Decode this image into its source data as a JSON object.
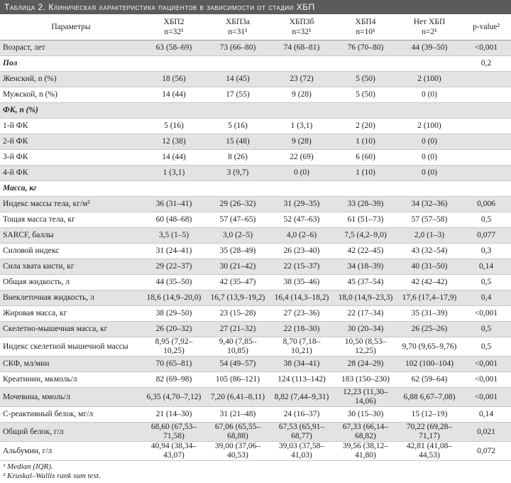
{
  "title": "Таблица 2. Клиническая характеристика пациентов в зависимости от стадии ХБП",
  "table": {
    "header": {
      "parameter": "Параметры",
      "groups": [
        {
          "name": "ХБП2",
          "n": "n=32¹"
        },
        {
          "name": "ХБП3а",
          "n": "n=31¹"
        },
        {
          "name": "ХБП3б",
          "n": "n=32¹"
        },
        {
          "name": "ХБП4",
          "n": "n=10¹"
        },
        {
          "name": "Нет ХБП",
          "n": "n=2¹"
        }
      ],
      "p": "p-value²"
    },
    "rows": [
      {
        "label": "Возраст, лет",
        "values": [
          "63 (58–69)",
          "73 (66–80)",
          "74 (68–81)",
          "76 (70–80)",
          "44 (39–50)"
        ],
        "p": "<0,001"
      },
      {
        "section": "Пол",
        "p": "0,2"
      },
      {
        "label": "Женский, n (%)",
        "values": [
          "18 (56)",
          "14 (45)",
          "23 (72)",
          "5 (50)",
          "2 (100)"
        ]
      },
      {
        "label": "Мужской, n (%)",
        "values": [
          "14 (44)",
          "17 (55)",
          "9 (28)",
          "5 (50)",
          "0 (0)"
        ]
      },
      {
        "section": "ФК, n (%)"
      },
      {
        "label": "1-й ФК",
        "values": [
          "5 (16)",
          "5 (16)",
          "1 (3,1)",
          "2 (20)",
          "2 (100)"
        ]
      },
      {
        "label": "2-й ФК",
        "values": [
          "12 (38)",
          "15 (48)",
          "9 (28)",
          "1 (10)",
          "0 (0)"
        ]
      },
      {
        "label": "3-й ФК",
        "values": [
          "14 (44)",
          "8 (26)",
          "22 (69)",
          "6 (60)",
          "0 (0)"
        ]
      },
      {
        "label": "4-й ФК",
        "values": [
          "1 (3,1)",
          "3 (9,7)",
          "0 (0)",
          "1 (10)",
          "0 (0)"
        ]
      },
      {
        "section": "Масса, кг"
      },
      {
        "label": "Индекс массы тела, кг/м²",
        "values": [
          "36 (31–41)",
          "29 (26–32)",
          "31 (29–35)",
          "33 (28–39)",
          "34 (32–36)"
        ],
        "p": "0,006"
      },
      {
        "label": "Тощая масса тела, кг",
        "values": [
          "60 (48–68)",
          "57 (47–65)",
          "52 (47–63)",
          "61 (51–73)",
          "57 (57–58)"
        ],
        "p": "0,5"
      },
      {
        "label": "SARCF, баллы",
        "values": [
          "3,5 (1–5)",
          "3,0 (2–5)",
          "4,0 (2–6)",
          "7,5 (4,2–9,0)",
          "2,0 (1–3)"
        ],
        "p": "0,077"
      },
      {
        "label": "Силовой индекс",
        "values": [
          "31 (24–41)",
          "35 (28–49)",
          "26 (23–40)",
          "42 (22–45)",
          "43 (32–54)"
        ],
        "p": "0,3"
      },
      {
        "label": "Сила хвата кисти, кг",
        "values": [
          "29 (22–37)",
          "30 (21–42)",
          "22 (15–37)",
          "34 (18–39)",
          "40 (31–50)"
        ],
        "p": "0,14"
      },
      {
        "label": "Общая жидкость, л",
        "values": [
          "44 (35–50)",
          "42 (35–47)",
          "38 (35–46)",
          "45 (37–54)",
          "42 (42–42)"
        ],
        "p": "0,5"
      },
      {
        "label": "Внеклеточная жидкость, л",
        "values": [
          "18,6 (14,9–20,0)",
          "16,7 (13,9–19,2)",
          "16,4 (14,3–18,2)",
          "18,0 (14,9–23,3)",
          "17,6 (17,4–17,9)"
        ],
        "p": "0,4"
      },
      {
        "label": "Жировая масса, кг",
        "values": [
          "38 (29–50)",
          "23 (15–28)",
          "27 (23–36)",
          "22 (17–34)",
          "35 (31–39)"
        ],
        "p": "<0,001"
      },
      {
        "label": "Скелетно-мышечная масса, кг",
        "values": [
          "26 (20–32)",
          "27 (21–32)",
          "22 (18–30)",
          "30 (20–34)",
          "26 (25–26)"
        ],
        "p": "0,5"
      },
      {
        "label": "Индекс скелетной мышечной массы",
        "values": [
          "8,95 (7,92–10,25)",
          "9,40 (7,85–10,85)",
          "8,70 (7,18–10,21)",
          "10,50 (8,53–12,25)",
          "9,70 (9,65–9,76)"
        ],
        "p": "0,5"
      },
      {
        "label": "СКФ, мл/мин",
        "values": [
          "70 (65–81)",
          "54 (49–57)",
          "38 (34–41)",
          "28 (24–29)",
          "102 (100–104)"
        ],
        "p": "<0,001"
      },
      {
        "label": "Креатинин, мкмоль/л",
        "values": [
          "82 (69–98)",
          "105 (86–121)",
          "124 (113–142)",
          "183 (150–230)",
          "62 (59–64)"
        ],
        "p": "<0,001"
      },
      {
        "label": "Мочевина, ммоль/л",
        "values": [
          "6,35 (4,70–7,12)",
          "7,20 (6,41–8,11)",
          "8,82 (7,44–9,31)",
          "12,23 (11,30–14,06)",
          "6,88 6,67–7,08)"
        ],
        "p": "<0,001"
      },
      {
        "label": "С-реактивный белок, мг/л",
        "values": [
          "21 (14–30)",
          "31 (21–48)",
          "24 (16–37)",
          "30 (15–30)",
          "15 (12–19)"
        ],
        "p": "0,14"
      },
      {
        "label": "Общий белок, г/л",
        "values": [
          "68,60 (67,53–71,58)",
          "67,06 (65,55–68,88)",
          "67,53 (65,91–68,77)",
          "67,33 (66,14–68,82)",
          "70,22 (69,28–71,17)"
        ],
        "p": "0,021"
      },
      {
        "label": "Альбумин, г/л",
        "values": [
          "40,94 (38,34–43,07)",
          "39,00 (37,06–40,53)",
          "39,03 (37,58–41,03)",
          "39,56 (38,12–41,80)",
          "42,81 (41,08–44,53)"
        ],
        "p": "0,072"
      }
    ]
  },
  "footnotes": [
    "¹ Median (IQR).",
    "² Kruskal–Wallis rank sum test."
  ]
}
